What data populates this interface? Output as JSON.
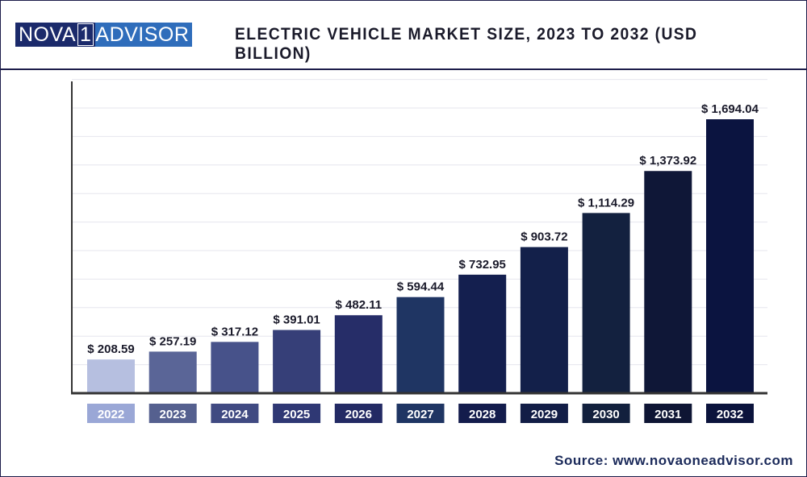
{
  "header": {
    "logo_left": "NOVA",
    "logo_mid": "1",
    "logo_right": "ADVISOR",
    "title": "ELECTRIC VEHICLE MARKET SIZE, 2023 TO 2032 (USD BILLION)"
  },
  "source": "Source: www.novaoneadvisor.com",
  "chart_data": {
    "type": "bar",
    "title": "ELECTRIC VEHICLE MARKET SIZE, 2023 TO 2032 (USD BILLION)",
    "categories": [
      "2022",
      "2023",
      "2024",
      "2025",
      "2026",
      "2027",
      "2028",
      "2029",
      "2030",
      "2031",
      "2032"
    ],
    "values": [
      208.59,
      257.19,
      317.12,
      391.01,
      482.11,
      594.44,
      732.95,
      903.72,
      1114.29,
      1373.92,
      1694.04
    ],
    "data_labels": [
      "$ 208.59",
      "$ 257.19",
      "$ 317.12",
      "$ 391.01",
      "$ 482.11",
      "$ 594.44",
      "$ 732.95",
      "$ 903.72",
      "$ 1,114.29",
      "$ 1,373.92",
      "$ 1,694.04"
    ],
    "colors": [
      "#b6bfe0",
      "#5a6597",
      "#47528a",
      "#363f78",
      "#262d68",
      "#1f3563",
      "#141f4f",
      "#13204a",
      "#13213f",
      "#0f1737",
      "#0b1440"
    ],
    "label_colors": [
      "#9aa7d6",
      "#55608f",
      "#404a82",
      "#2f3874",
      "#232a64",
      "#1f3563",
      "#131c4c",
      "#121d46",
      "#12203d",
      "#0e1534",
      "#0b133c"
    ],
    "grid": true,
    "xlabel": "",
    "ylabel": ""
  }
}
